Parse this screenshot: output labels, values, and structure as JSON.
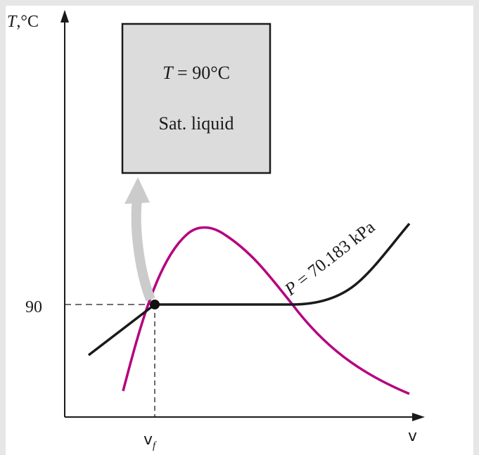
{
  "axes": {
    "y_label_var": "T",
    "y_label_unit": ",°C",
    "x_label": "v"
  },
  "ticks": {
    "y_value": "90",
    "x_value_main": "v",
    "x_value_sub": "f"
  },
  "state_box": {
    "line1_var": "T",
    "line1_rest": " = 90°C",
    "line2": "Sat. liquid"
  },
  "isobar_label": {
    "var": "P",
    "rest": " = 70.183 kPa"
  },
  "colors": {
    "page_background": "#e6e6e6",
    "canvas": "#ffffff",
    "saturation_dome": "#b5007f",
    "isobar": "#1a1a1a",
    "box_fill": "#dcdcdc",
    "arrow": "#c9c9c9"
  }
}
